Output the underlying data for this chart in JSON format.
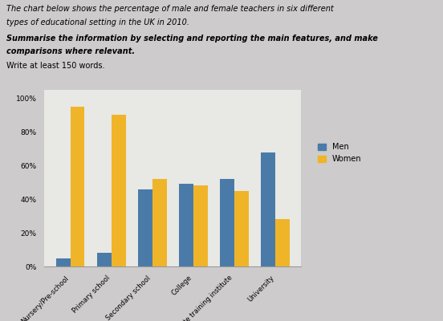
{
  "categories": [
    "Nursery/Pre-school",
    "Primary school",
    "Secondary school",
    "College",
    "Private training institute",
    "University"
  ],
  "men_values": [
    5,
    8,
    46,
    49,
    52,
    68
  ],
  "women_values": [
    95,
    90,
    52,
    48,
    45,
    28
  ],
  "men_color": "#4A7BA8",
  "women_color": "#F0B429",
  "title_text1": "The chart below shows the percentage of male and female teachers in six different",
  "title_text2": "types of educational setting in the UK in 2010.",
  "prompt_text1": "Summarise the information by selecting and reporting the main features, and make",
  "prompt_text2": "comparisons where relevant.",
  "write_text": "Write at least 150 words.",
  "ylim": [
    0,
    105
  ],
  "yticks": [
    0,
    20,
    40,
    60,
    80,
    100
  ],
  "ytick_labels": [
    "0%",
    "20%",
    "40%",
    "60%",
    "80%",
    "100%"
  ],
  "background_color": "#CDCBCB",
  "plot_background": "#E8E8E4",
  "legend_men": "Men",
  "legend_women": "Women",
  "bar_width": 0.35
}
